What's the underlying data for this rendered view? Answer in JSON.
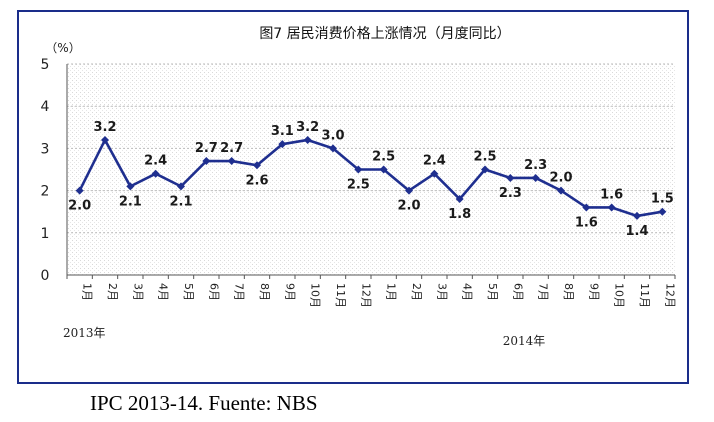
{
  "caption": "IPC 2013-14. Fuente: NBS",
  "chart_data": {
    "type": "line",
    "title": "图7   居民消费价格上涨情况（月度同比）",
    "ylabel": "（%）",
    "ylim": [
      0,
      5
    ],
    "yticks": [
      "0",
      "1",
      "2",
      "3",
      "4",
      "5"
    ],
    "categories": [
      "1月",
      "2月",
      "3月",
      "4月",
      "5月",
      "6月",
      "7月",
      "8月",
      "9月",
      "10月",
      "11月",
      "12月",
      "1月",
      "2月",
      "3月",
      "4月",
      "5月",
      "6月",
      "7月",
      "8月",
      "9月",
      "10月",
      "11月",
      "12月"
    ],
    "values": [
      2.0,
      3.2,
      2.1,
      2.4,
      2.1,
      2.7,
      2.7,
      2.6,
      3.1,
      3.2,
      3.0,
      2.5,
      2.5,
      2.0,
      2.4,
      1.8,
      2.5,
      2.3,
      2.3,
      2.0,
      1.6,
      1.6,
      1.4,
      1.5
    ],
    "labels": [
      "2.0",
      "3.2",
      "2.1",
      "2.4",
      "2.1",
      "2.7",
      "2.7",
      "2.6",
      "3.1",
      "3.2",
      "3.0",
      "2.5",
      "2.5",
      "2.0",
      "2.4",
      "1.8",
      "2.5",
      "2.3",
      "2.3",
      "2.0",
      "1.6",
      "1.6",
      "1.4",
      "1.5"
    ],
    "year_groups": [
      {
        "label": "2013年",
        "start": 0
      },
      {
        "label": "2014年",
        "start": 12
      }
    ],
    "line_color": "#1f2f8f",
    "grid": true
  }
}
